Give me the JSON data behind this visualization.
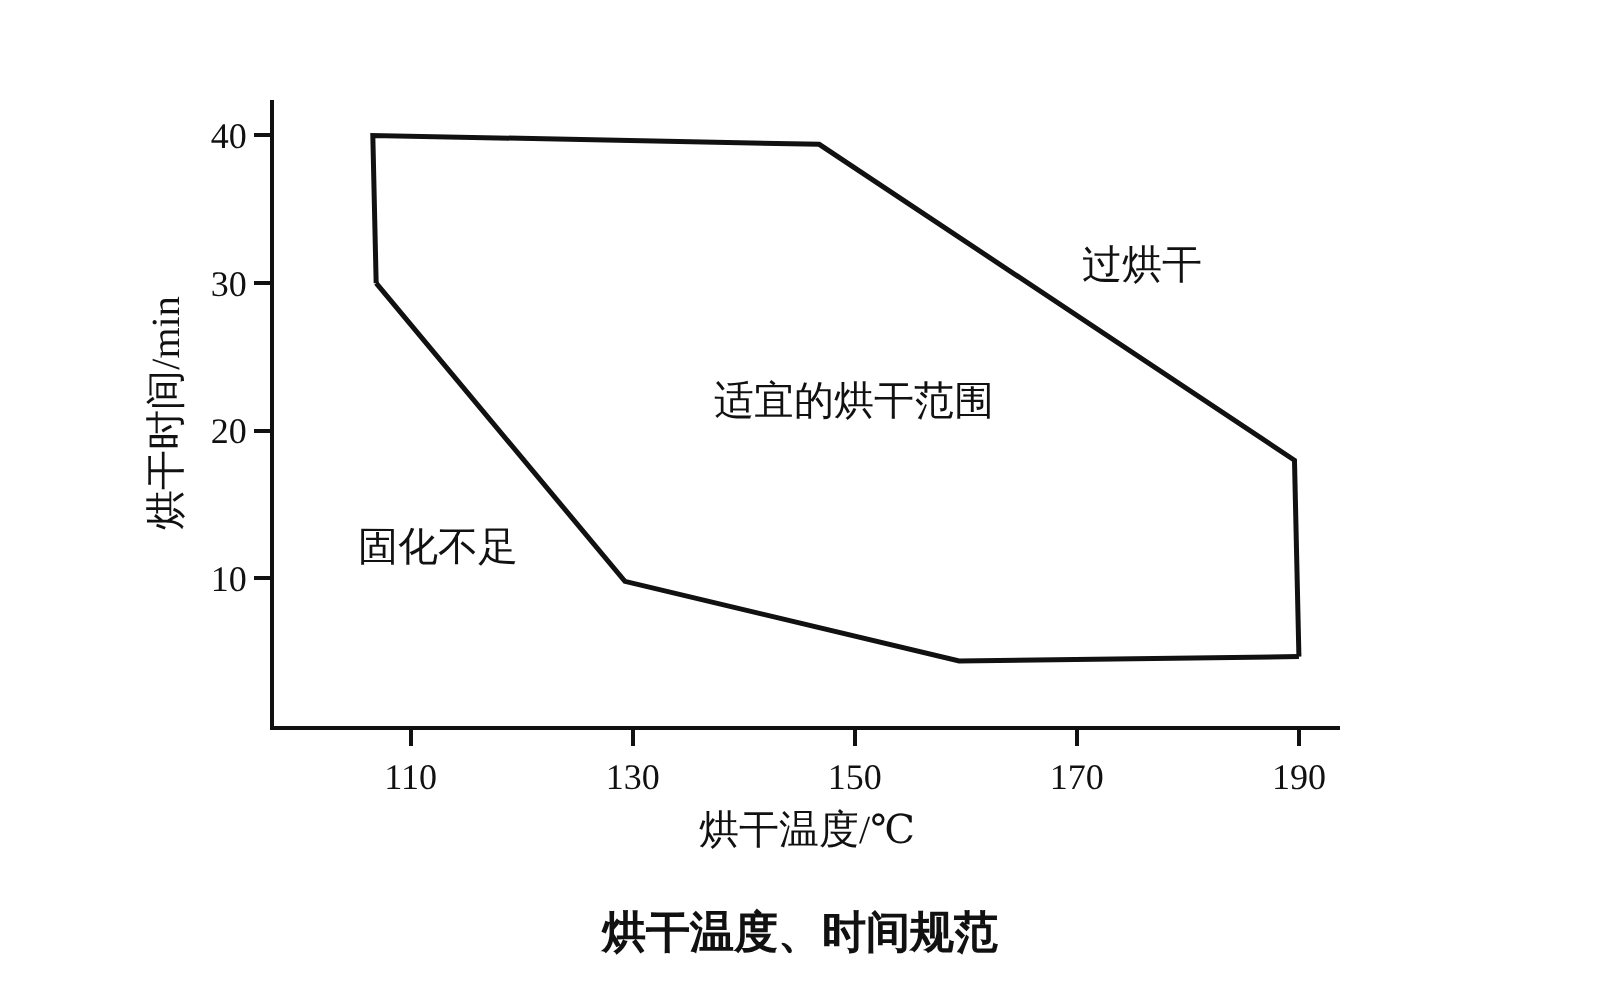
{
  "chart_data": {
    "type": "line",
    "title": "烘干温度、时间规范",
    "xlabel": "烘干温度/℃",
    "ylabel": "烘干时间/min",
    "series": [
      {
        "color": "#111111",
        "x": [
          106.9,
          106.6,
          146.8,
          189.6,
          190
        ],
        "values": [
          30,
          40,
          39.4,
          18,
          4.7
        ]
      },
      {
        "color": "#111111",
        "x": [
          106.9,
          129.3,
          159.4,
          190
        ],
        "values": [
          30,
          9.8,
          4.4,
          4.7
        ]
      }
    ],
    "xlim": [
      97.7,
      193.7
    ],
    "xticks": [
      110,
      130,
      150,
      170,
      190
    ],
    "ylim": [
      0,
      42.4
    ],
    "yticks": [
      10,
      20,
      30,
      40
    ],
    "grid": false,
    "marker": "none",
    "line_style": "solid",
    "annotations": [
      "过烘干",
      "适宜的烘干范围",
      "固化不足"
    ]
  }
}
